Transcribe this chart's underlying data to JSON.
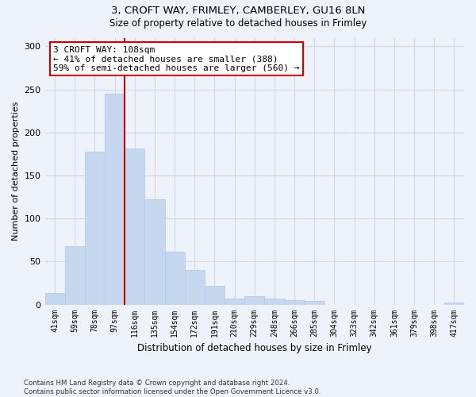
{
  "title1": "3, CROFT WAY, FRIMLEY, CAMBERLEY, GU16 8LN",
  "title2": "Size of property relative to detached houses in Frimley",
  "xlabel": "Distribution of detached houses by size in Frimley",
  "ylabel": "Number of detached properties",
  "categories": [
    "41sqm",
    "59sqm",
    "78sqm",
    "97sqm",
    "116sqm",
    "135sqm",
    "154sqm",
    "172sqm",
    "191sqm",
    "210sqm",
    "229sqm",
    "248sqm",
    "266sqm",
    "285sqm",
    "304sqm",
    "323sqm",
    "342sqm",
    "361sqm",
    "379sqm",
    "398sqm",
    "417sqm"
  ],
  "values": [
    13,
    68,
    178,
    245,
    181,
    122,
    61,
    40,
    22,
    7,
    10,
    7,
    5,
    4,
    0,
    0,
    0,
    0,
    0,
    0,
    2
  ],
  "bar_color": "#c5d8f0",
  "bar_edge_color": "#b0c8e8",
  "grid_color": "#d0d8e8",
  "property_line_x": 3.5,
  "annotation_text": "3 CROFT WAY: 108sqm\n← 41% of detached houses are smaller (388)\n59% of semi-detached houses are larger (560) →",
  "annotation_box_color": "#ffffff",
  "annotation_box_edge": "#cc0000",
  "property_line_color": "#cc0000",
  "ylim": [
    0,
    310
  ],
  "yticks": [
    0,
    50,
    100,
    150,
    200,
    250,
    300
  ],
  "footnote": "Contains HM Land Registry data © Crown copyright and database right 2024.\nContains public sector information licensed under the Open Government Licence v3.0.",
  "background_color": "#eef2fa"
}
